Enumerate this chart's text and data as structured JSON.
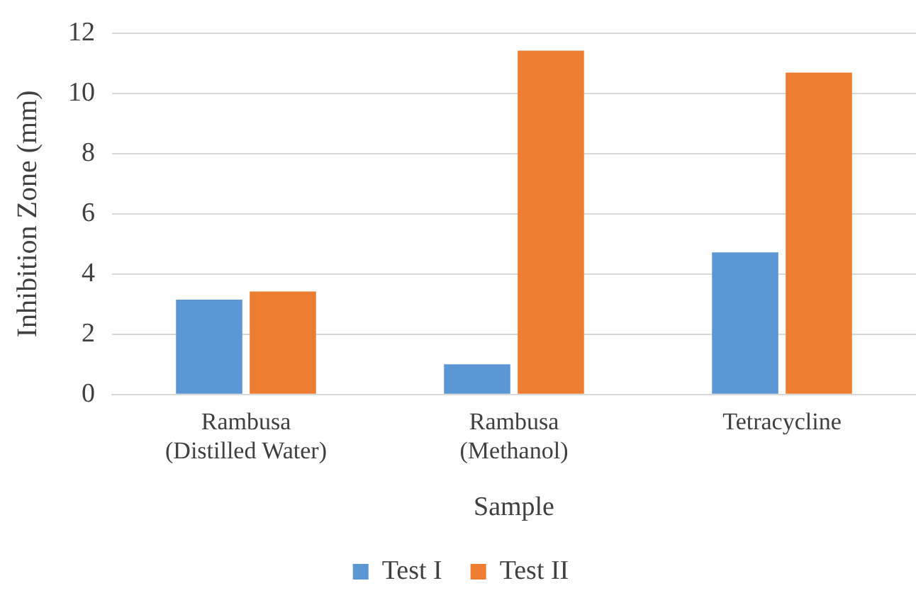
{
  "chart_data": {
    "type": "bar",
    "xlabel": "Sample",
    "ylabel": "Inhibition Zone (mm)",
    "categories": [
      "Rambusa\n(Distilled Water)",
      "Rambusa\n(Methanol)",
      "Tetracycline"
    ],
    "series": [
      {
        "name": "Test I",
        "color": "#5b96d5",
        "values": [
          3.15,
          1.0,
          4.72
        ]
      },
      {
        "name": "Test II",
        "color": "#ed7d31",
        "values": [
          3.42,
          11.42,
          10.69
        ]
      }
    ],
    "ylim": [
      0,
      12
    ],
    "yticks": [
      0,
      2,
      4,
      6,
      8,
      10,
      12
    ],
    "grid": "y",
    "legend": "bottom"
  }
}
